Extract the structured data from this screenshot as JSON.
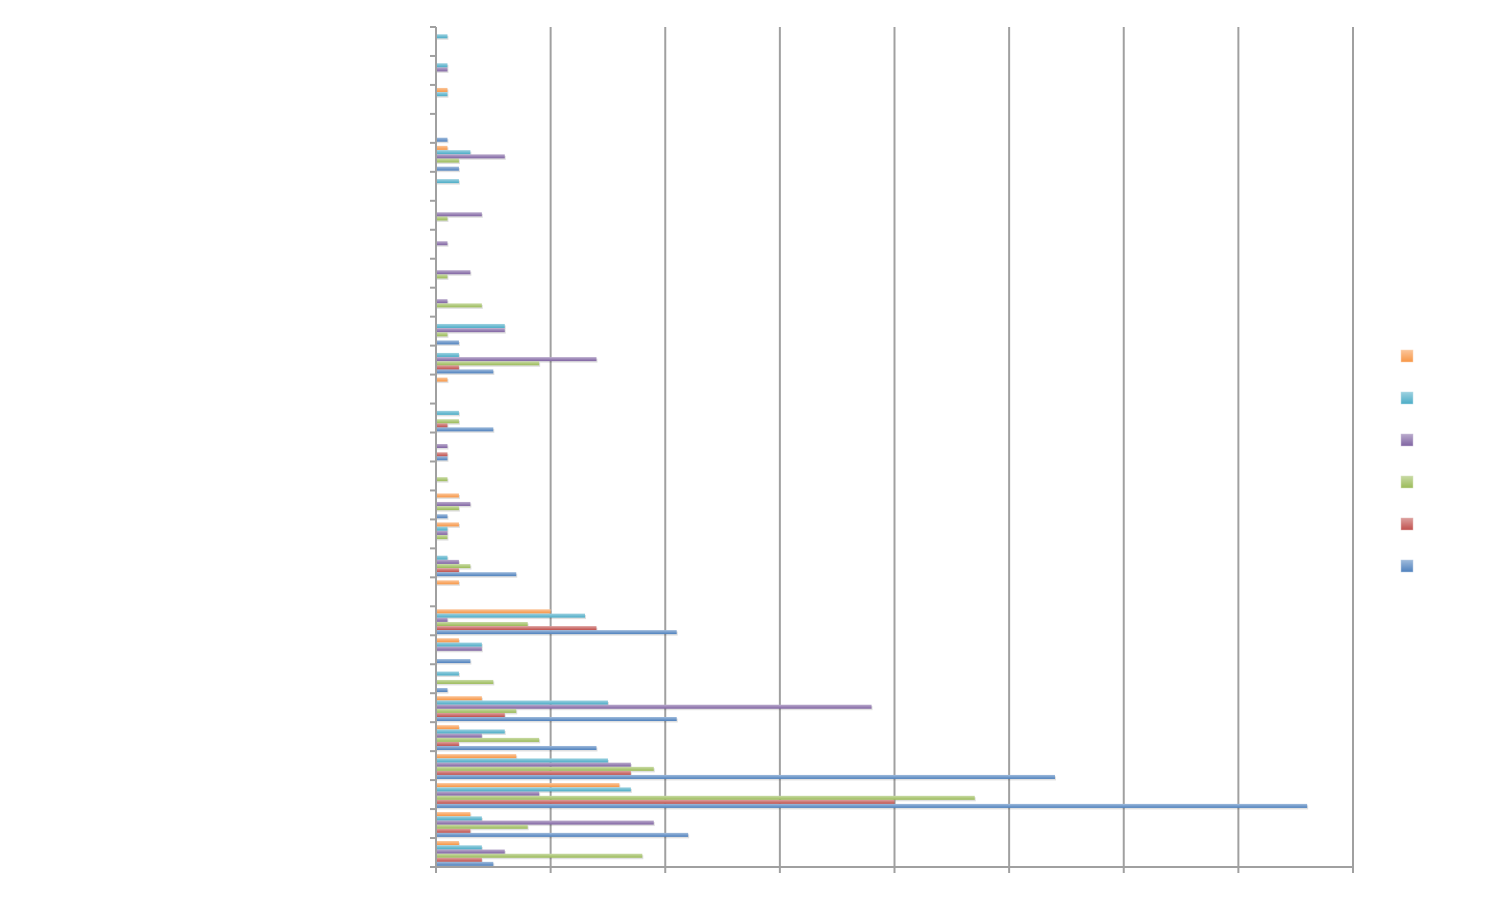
{
  "chart_data": {
    "type": "bar",
    "orientation": "horizontal",
    "title": "",
    "xlabel": "",
    "ylabel": "",
    "xlim": [
      0,
      80
    ],
    "x_grid_step": 10,
    "grid": true,
    "tick_labels_visible": false,
    "legend": "right",
    "category_count": 29,
    "series": [
      {
        "color": "#f79646",
        "values": [
          0,
          0,
          1,
          0,
          1,
          0,
          0,
          0,
          0,
          0,
          0,
          0,
          1,
          0,
          0,
          0,
          2,
          2,
          0,
          2,
          10,
          2,
          0,
          4,
          2,
          7,
          16,
          3,
          2
        ]
      },
      {
        "color": "#4bacc6",
        "values": [
          1,
          1,
          1,
          0,
          3,
          2,
          0,
          0,
          0,
          0,
          6,
          2,
          0,
          2,
          0,
          0,
          0,
          1,
          1,
          0,
          13,
          4,
          2,
          15,
          6,
          15,
          17,
          4,
          4
        ]
      },
      {
        "color": "#8064a2",
        "values": [
          0,
          1,
          0,
          0,
          6,
          0,
          4,
          1,
          3,
          1,
          6,
          14,
          0,
          0,
          1,
          0,
          3,
          1,
          2,
          0,
          1,
          4,
          0,
          38,
          4,
          17,
          9,
          19,
          6
        ]
      },
      {
        "color": "#9bbb59",
        "values": [
          0,
          0,
          0,
          0,
          2,
          0,
          1,
          0,
          1,
          4,
          1,
          9,
          0,
          2,
          0,
          1,
          2,
          1,
          3,
          0,
          8,
          0,
          5,
          7,
          9,
          19,
          47,
          8,
          18
        ]
      },
      {
        "color": "#c0504d",
        "values": [
          0,
          0,
          0,
          0,
          0,
          0,
          0,
          0,
          0,
          0,
          0,
          2,
          0,
          1,
          1,
          0,
          0,
          0,
          2,
          0,
          14,
          0,
          0,
          6,
          2,
          17,
          40,
          3,
          4
        ]
      },
      {
        "color": "#4f81bd",
        "values": [
          0,
          0,
          0,
          1,
          2,
          0,
          0,
          0,
          0,
          0,
          2,
          5,
          0,
          5,
          1,
          0,
          1,
          0,
          7,
          0,
          21,
          3,
          1,
          21,
          14,
          54,
          76,
          22,
          5
        ]
      }
    ]
  }
}
